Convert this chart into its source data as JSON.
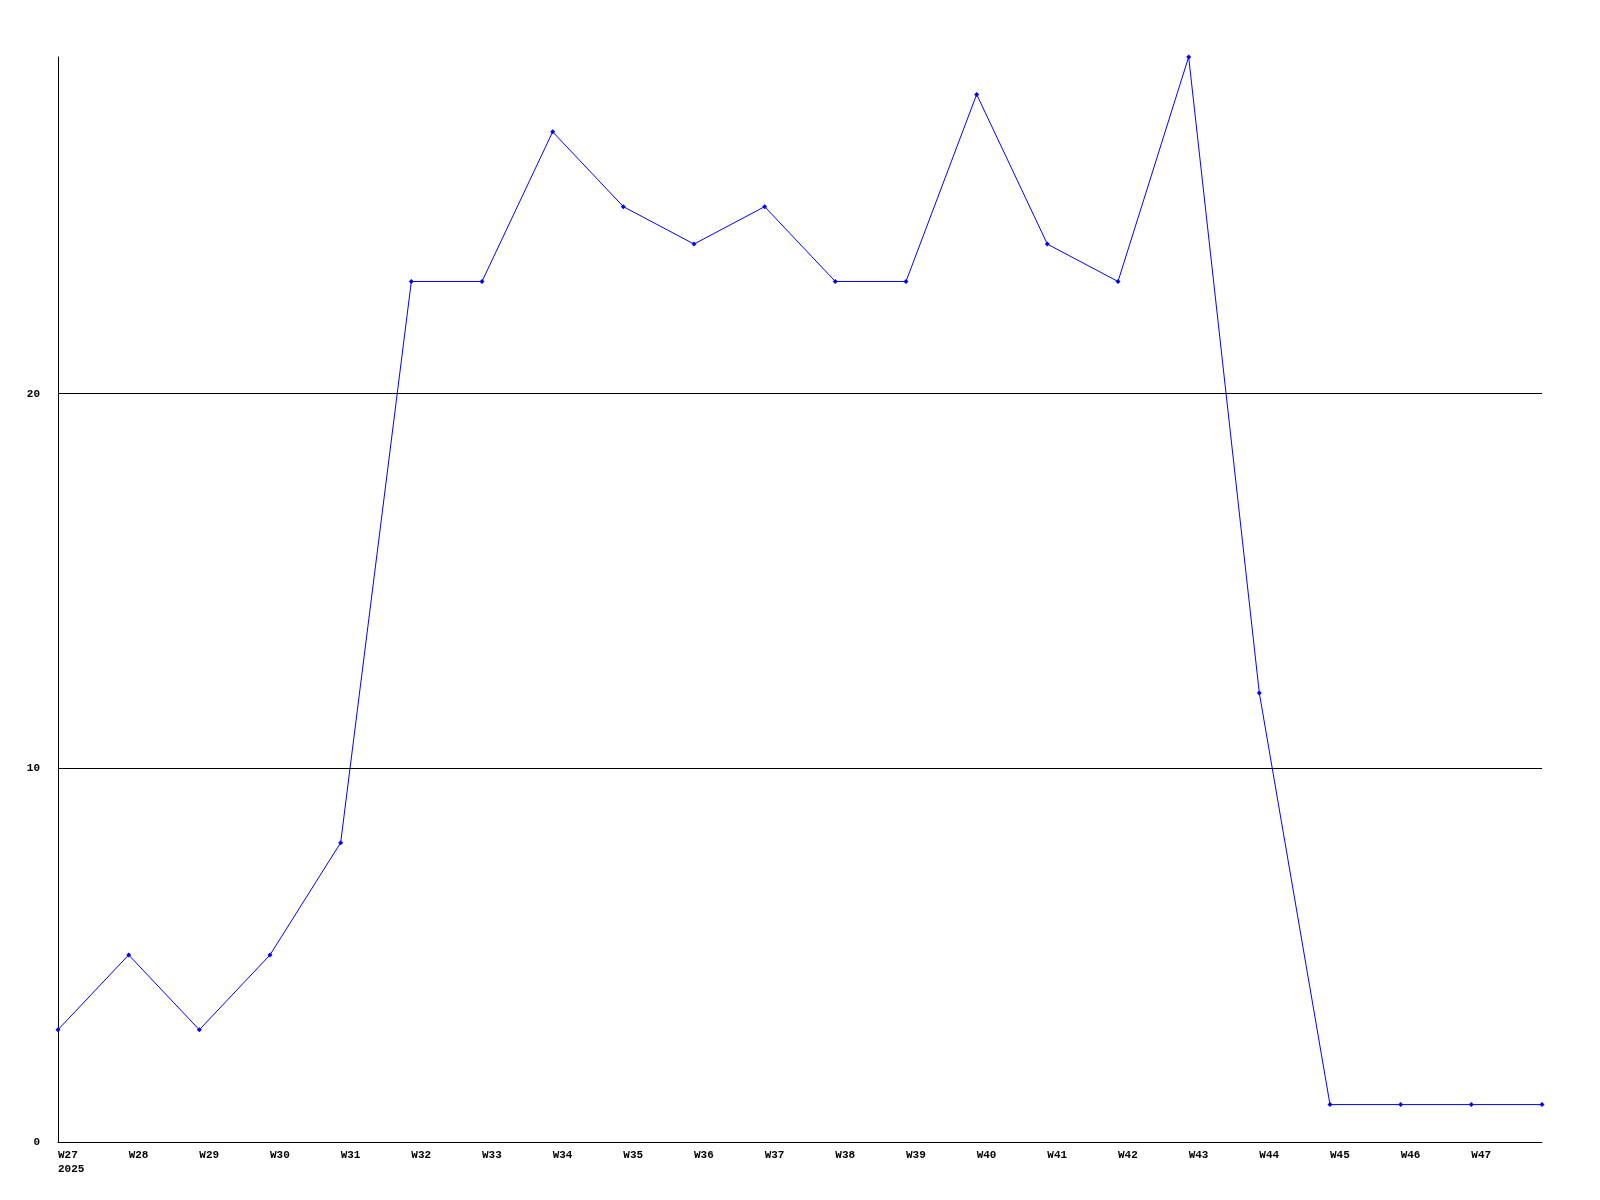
{
  "chart_data": {
    "type": "line",
    "categories": [
      "W27\n2025",
      "W28",
      "W29",
      "W30",
      "W31",
      "W32",
      "W33",
      "W34",
      "W35",
      "W36",
      "W37",
      "W38",
      "W39",
      "W40",
      "W41",
      "W42",
      "W43",
      "W44",
      "W45",
      "W46",
      "W47",
      null
    ],
    "series": [
      {
        "color": "#0000ff",
        "values": [
          3,
          5,
          3,
          5,
          8,
          23,
          23,
          27,
          25,
          24,
          25,
          23,
          23,
          28,
          24,
          23,
          29,
          12,
          1,
          1,
          1,
          1
        ]
      }
    ],
    "ylim": [
      0,
      29
    ],
    "yticks": [
      0,
      10,
      20
    ],
    "grid": "y",
    "marker": "diamond",
    "line_style": "solid"
  }
}
